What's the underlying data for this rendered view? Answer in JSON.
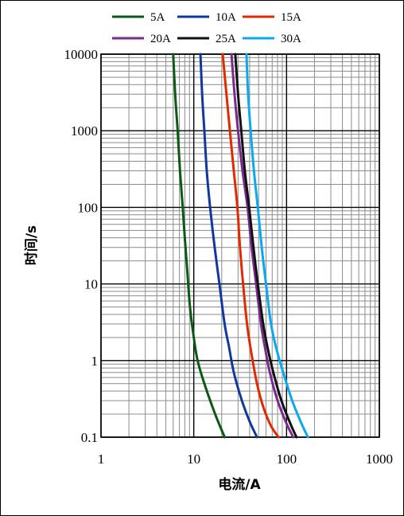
{
  "chart_data": {
    "type": "line",
    "xscale": "log",
    "yscale": "log",
    "xlabel": "电流/A",
    "ylabel": "时间/s",
    "xlim": [
      1,
      1000
    ],
    "ylim": [
      0.1,
      10000
    ],
    "x_ticks": [
      "1",
      "10",
      "100",
      "1000"
    ],
    "y_ticks": [
      "0.1",
      "1",
      "10",
      "100",
      "1000",
      "10000"
    ],
    "grid": true,
    "legend": "top",
    "series": [
      {
        "name": "5A",
        "color": "#0b5a13",
        "points": [
          [
            6.0,
            10000
          ],
          [
            6.3,
            3000
          ],
          [
            6.7,
            1000
          ],
          [
            7.1,
            300
          ],
          [
            7.6,
            100
          ],
          [
            8.0,
            40
          ],
          [
            8.5,
            15
          ],
          [
            9.1,
            5
          ],
          [
            10.0,
            2
          ],
          [
            11.0,
            1
          ],
          [
            13.0,
            0.5
          ],
          [
            17.0,
            0.2
          ],
          [
            21.5,
            0.1
          ]
        ]
      },
      {
        "name": "10A",
        "color": "#10389c",
        "points": [
          [
            11.8,
            10000
          ],
          [
            12.3,
            3000
          ],
          [
            13.0,
            1000
          ],
          [
            13.8,
            300
          ],
          [
            15.0,
            100
          ],
          [
            16.8,
            30
          ],
          [
            18.9,
            10
          ],
          [
            21.5,
            3
          ],
          [
            24.0,
            1.5
          ],
          [
            27.0,
            0.7
          ],
          [
            33.0,
            0.3
          ],
          [
            40.0,
            0.16
          ],
          [
            48.0,
            0.1
          ]
        ]
      },
      {
        "name": "15A",
        "color": "#e02a00",
        "points": [
          [
            20.5,
            10000
          ],
          [
            22.5,
            3000
          ],
          [
            24.5,
            1000
          ],
          [
            27.0,
            300
          ],
          [
            29.5,
            100
          ],
          [
            31.5,
            30
          ],
          [
            34.0,
            10
          ],
          [
            37.5,
            3
          ],
          [
            42.0,
            1.2
          ],
          [
            48.0,
            0.5
          ],
          [
            56.0,
            0.25
          ],
          [
            68.0,
            0.14
          ],
          [
            82.0,
            0.1
          ]
        ]
      },
      {
        "name": "20A",
        "color": "#7a2a8c",
        "points": [
          [
            25.5,
            10000
          ],
          [
            27.5,
            3000
          ],
          [
            30.0,
            1000
          ],
          [
            33.5,
            300
          ],
          [
            38.0,
            100
          ],
          [
            42.0,
            30
          ],
          [
            47.0,
            10
          ],
          [
            53.0,
            3
          ],
          [
            59.0,
            1.4
          ],
          [
            66.0,
            0.7
          ],
          [
            80.0,
            0.3
          ],
          [
            100.0,
            0.15
          ],
          [
            118.0,
            0.1
          ]
        ]
      },
      {
        "name": "25A",
        "color": "#111111",
        "points": [
          [
            28.0,
            10000
          ],
          [
            30.0,
            3000
          ],
          [
            32.5,
            1000
          ],
          [
            35.5,
            300
          ],
          [
            39.5,
            100
          ],
          [
            44.0,
            30
          ],
          [
            49.0,
            10
          ],
          [
            56.0,
            3
          ],
          [
            63.0,
            1.4
          ],
          [
            72.0,
            0.7
          ],
          [
            88.0,
            0.3
          ],
          [
            110.0,
            0.15
          ],
          [
            128.0,
            0.1
          ]
        ]
      },
      {
        "name": "30A",
        "color": "#0aa8f0",
        "points": [
          [
            37.0,
            10000
          ],
          [
            38.5,
            3000
          ],
          [
            41.0,
            1000
          ],
          [
            44.5,
            300
          ],
          [
            49.0,
            100
          ],
          [
            54.0,
            30
          ],
          [
            60.0,
            10
          ],
          [
            68.0,
            3
          ],
          [
            78.0,
            1.4
          ],
          [
            92.0,
            0.7
          ],
          [
            115.0,
            0.3
          ],
          [
            145.0,
            0.15
          ],
          [
            170.0,
            0.1
          ]
        ]
      }
    ]
  }
}
